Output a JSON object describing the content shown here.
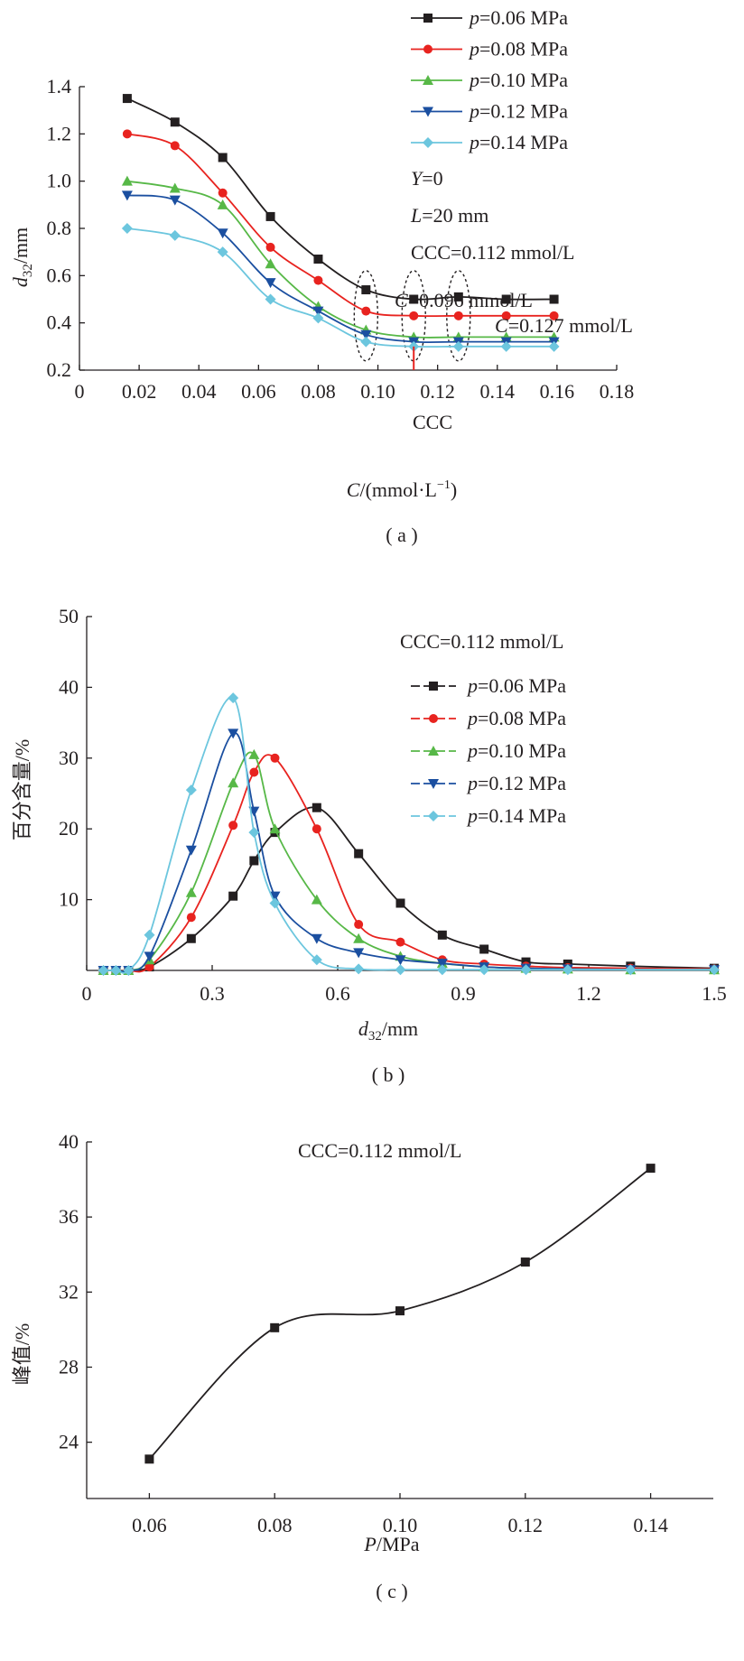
{
  "chart_data": [
    {
      "id": "a",
      "type": "line",
      "caption": "( a )",
      "xlabel": "C/(mmol·L⁻¹)",
      "ylabel": "d32/mm",
      "xlim": [
        0,
        0.18
      ],
      "ylim": [
        0.2,
        1.4
      ],
      "xticks": [
        "0",
        "0.02",
        "0.04",
        "0.06",
        "0.08",
        "0.10",
        "0.12",
        "0.14",
        "0.16",
        "0.18"
      ],
      "yticks": [
        "0.2",
        "0.4",
        "0.6",
        "0.8",
        "1.0",
        "1.2",
        "1.4"
      ],
      "legend_position": "top-right",
      "x": [
        0.016,
        0.032,
        0.048,
        0.064,
        0.08,
        0.096,
        0.112,
        0.127,
        0.143,
        0.159
      ],
      "series": [
        {
          "name": "p=0.06 MPa",
          "color": "#231f20",
          "marker": "square",
          "values": [
            1.35,
            1.25,
            1.1,
            0.85,
            0.67,
            0.54,
            0.5,
            0.51,
            0.5,
            0.5
          ]
        },
        {
          "name": "p=0.08 MPa",
          "color": "#e8231f",
          "marker": "circle",
          "values": [
            1.2,
            1.15,
            0.95,
            0.72,
            0.58,
            0.45,
            0.43,
            0.43,
            0.43,
            0.43
          ]
        },
        {
          "name": "p=0.10 MPa",
          "color": "#57b847",
          "marker": "triangle-up",
          "values": [
            1.0,
            0.97,
            0.9,
            0.65,
            0.47,
            0.37,
            0.34,
            0.34,
            0.34,
            0.34
          ]
        },
        {
          "name": "p=0.12 MPa",
          "color": "#1b4fa0",
          "marker": "triangle-down",
          "values": [
            0.94,
            0.92,
            0.78,
            0.57,
            0.45,
            0.35,
            0.32,
            0.32,
            0.32,
            0.32
          ]
        },
        {
          "name": "p=0.14 MPa",
          "color": "#6cc6de",
          "marker": "diamond",
          "values": [
            0.8,
            0.77,
            0.7,
            0.5,
            0.42,
            0.32,
            0.3,
            0.3,
            0.3,
            0.3
          ]
        }
      ],
      "annotations": [
        "Y=0",
        "L=20 mm",
        "CCC=0.112 mmol/L",
        "C=0.096 mmol/L",
        "C=0.127 mmol/L",
        "CCC"
      ],
      "ccc_marker_x": 0.112,
      "ellipses_at_x": [
        0.096,
        0.112,
        0.127
      ]
    },
    {
      "id": "b",
      "type": "line",
      "caption": "( b )",
      "xlabel": "d32/mm",
      "ylabel": "百分含量/%",
      "xlim": [
        0,
        1.5
      ],
      "ylim": [
        0,
        50
      ],
      "xticks": [
        "0",
        "0.3",
        "0.6",
        "0.9",
        "1.2",
        "1.5"
      ],
      "yticks": [
        "10",
        "20",
        "30",
        "40",
        "50"
      ],
      "annotation": "CCC=0.112 mmol/L",
      "legend_position": "top-right",
      "series": [
        {
          "name": "p=0.06 MPa",
          "color": "#231f20",
          "marker": "square",
          "x": [
            0.04,
            0.07,
            0.1,
            0.15,
            0.25,
            0.35,
            0.4,
            0.45,
            0.55,
            0.65,
            0.75,
            0.85,
            0.95,
            1.05,
            1.15,
            1.3,
            1.5
          ],
          "y": [
            0,
            0,
            0,
            0.5,
            4.5,
            10.5,
            15.5,
            19.5,
            23,
            16.5,
            9.5,
            5,
            3,
            1.2,
            0.9,
            0.6,
            0.3
          ]
        },
        {
          "name": "p=0.08 MPa",
          "color": "#e8231f",
          "marker": "circle",
          "x": [
            0.04,
            0.07,
            0.1,
            0.15,
            0.25,
            0.35,
            0.4,
            0.45,
            0.55,
            0.65,
            0.75,
            0.85,
            0.95,
            1.05,
            1.15,
            1.3,
            1.5
          ],
          "y": [
            0,
            0,
            0,
            0.5,
            7.5,
            20.5,
            28,
            30,
            20,
            6.5,
            4,
            1.5,
            0.9,
            0.6,
            0.4,
            0.3,
            0.2
          ]
        },
        {
          "name": "p=0.10 MPa",
          "color": "#57b847",
          "marker": "triangle-up",
          "x": [
            0.04,
            0.07,
            0.1,
            0.15,
            0.25,
            0.35,
            0.4,
            0.45,
            0.55,
            0.65,
            0.75,
            0.85,
            0.95,
            1.05,
            1.15,
            1.3,
            1.5
          ],
          "y": [
            0,
            0,
            0,
            1.5,
            11,
            26.5,
            30.5,
            20,
            10,
            4.5,
            2,
            1,
            0.5,
            0.3,
            0.2,
            0.1,
            0.1
          ]
        },
        {
          "name": "p=0.12 MPa",
          "color": "#1b4fa0",
          "marker": "triangle-down",
          "x": [
            0.04,
            0.07,
            0.1,
            0.15,
            0.25,
            0.35,
            0.4,
            0.45,
            0.55,
            0.65,
            0.75,
            0.85,
            0.95,
            1.05,
            1.15,
            1.3,
            1.5
          ],
          "y": [
            0,
            0,
            0,
            2,
            17,
            33.5,
            22.5,
            10.5,
            4.5,
            2.5,
            1.5,
            1,
            0.5,
            0.3,
            0.2,
            0.1,
            0.1
          ]
        },
        {
          "name": "p=0.14 MPa",
          "color": "#6cc6de",
          "marker": "diamond",
          "x": [
            0.04,
            0.07,
            0.1,
            0.15,
            0.25,
            0.35,
            0.4,
            0.45,
            0.55,
            0.65,
            0.75,
            0.85,
            0.95,
            1.05,
            1.15,
            1.3,
            1.5
          ],
          "y": [
            0,
            0,
            0,
            5,
            25.5,
            38.5,
            19.5,
            9.5,
            1.5,
            0.2,
            0.1,
            0.1,
            0.1,
            0.1,
            0.1,
            0.1,
            0.1
          ]
        }
      ]
    },
    {
      "id": "c",
      "type": "scatter",
      "caption": "( c )",
      "xlabel": "P/MPa",
      "ylabel": "峰值/%",
      "xlim": [
        0.05,
        0.15
      ],
      "ylim": [
        21,
        40
      ],
      "xticks": [
        "0.06",
        "0.08",
        "0.10",
        "0.12",
        "0.14"
      ],
      "yticks": [
        "24",
        "28",
        "32",
        "36",
        "40"
      ],
      "annotation": "CCC=0.112 mmol/L",
      "series": [
        {
          "name": "",
          "color": "#231f20",
          "marker": "square",
          "x": [
            0.06,
            0.08,
            0.1,
            0.12,
            0.14
          ],
          "y": [
            23.1,
            30.1,
            31.0,
            33.6,
            38.6
          ]
        }
      ]
    }
  ]
}
